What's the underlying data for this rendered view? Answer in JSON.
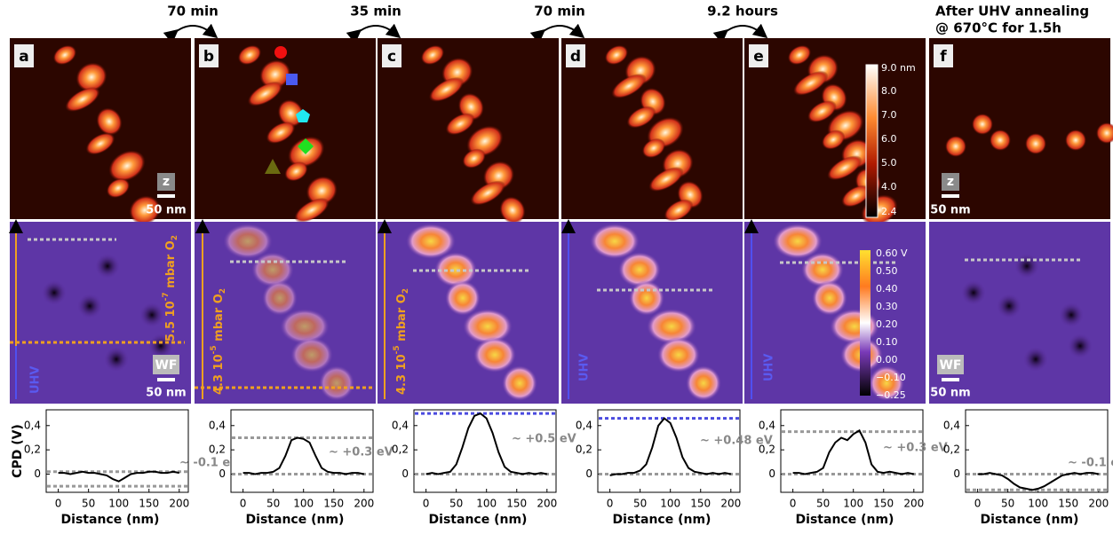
{
  "header": {
    "arrow_labels": [
      "70 min",
      "35 min",
      "70 min",
      "9.2 hours"
    ],
    "annealing": [
      "After UHV annealing",
      "@ 670°C for 1.5h"
    ]
  },
  "panels": {
    "letters": [
      "a",
      "b",
      "c",
      "d",
      "e",
      "f"
    ],
    "z_label": "z",
    "wf_label": "WF",
    "scale_bar": "50 nm"
  },
  "topo_colorbar": [
    "9.0 nm",
    "8.0",
    "7.0",
    "6.0",
    "5.0",
    "4.0",
    "2.4"
  ],
  "wf_colorbar": [
    "0.60 V",
    "0.50",
    "0.40",
    "0.30",
    "0.20",
    "0.10",
    "0.00",
    "−0.10",
    "−0.25"
  ],
  "environment": {
    "uhv": "UHV",
    "low_pressure": {
      "base": "5.5 10",
      "exp": "-7",
      "unit": " mbar O",
      "sub": "2"
    },
    "high_pressure": {
      "base": "4.3 10",
      "exp": "-5",
      "unit": " mbar O",
      "sub": "2"
    }
  },
  "chart_data": [
    {
      "type": "line",
      "xlabel": "Distance (nm)",
      "ylabel": "CPD (V)",
      "annotation": "~ -0.1 eV",
      "x": [
        0,
        10,
        20,
        30,
        40,
        50,
        60,
        70,
        80,
        90,
        100,
        110,
        120,
        130,
        140,
        150,
        160,
        170,
        180,
        190,
        200
      ],
      "series": [
        {
          "color": "#000000",
          "values": [
            0.01,
            0.01,
            0.0,
            0.01,
            0.02,
            0.01,
            0.01,
            0.0,
            -0.01,
            -0.04,
            -0.06,
            -0.03,
            0.0,
            0.01,
            0.01,
            0.02,
            0.02,
            0.01,
            0.01,
            0.02,
            0.01
          ]
        }
      ],
      "reference_lines": [
        {
          "value": 0.02,
          "color": "#999999"
        },
        {
          "value": -0.1,
          "color": "#999999"
        }
      ],
      "xlim": [
        -20,
        215
      ],
      "ylim": [
        -0.15,
        0.53
      ],
      "xticks": [
        0,
        50,
        100,
        150,
        200
      ],
      "yticks": [
        0,
        {
          "value": 0.2,
          "label": "0,2"
        },
        {
          "value": 0.4,
          "label": "0,4"
        }
      ]
    },
    {
      "type": "line",
      "xlabel": "Distance (nm)",
      "annotation": "~ +0.3 eV",
      "x": [
        0,
        10,
        20,
        30,
        40,
        50,
        60,
        70,
        80,
        90,
        100,
        110,
        120,
        130,
        140,
        150,
        160,
        170,
        180,
        190,
        200
      ],
      "series": [
        {
          "color": "#000000",
          "values": [
            0.01,
            0.01,
            0.0,
            0.01,
            0.01,
            0.02,
            0.05,
            0.15,
            0.28,
            0.3,
            0.29,
            0.26,
            0.15,
            0.05,
            0.02,
            0.01,
            0.01,
            0.0,
            0.01,
            0.01,
            0.0
          ]
        }
      ],
      "reference_lines": [
        {
          "value": 0.3,
          "color": "#999999"
        },
        {
          "value": 0,
          "color": "#999999"
        }
      ],
      "xlim": [
        -20,
        215
      ],
      "ylim": [
        -0.15,
        0.53
      ],
      "xticks": [
        0,
        50,
        100,
        150,
        200
      ],
      "yticks": [
        0,
        {
          "value": 0.2,
          "label": "0,2"
        },
        {
          "value": 0.4,
          "label": "0,4"
        }
      ]
    },
    {
      "type": "line",
      "xlabel": "Distance (nm)",
      "annotation": "~ +0.5 eV",
      "x": [
        0,
        10,
        20,
        30,
        40,
        50,
        60,
        70,
        80,
        90,
        100,
        110,
        120,
        130,
        140,
        150,
        160,
        170,
        180,
        190,
        200
      ],
      "series": [
        {
          "color": "#000000",
          "values": [
            0.0,
            0.01,
            0.0,
            0.01,
            0.02,
            0.08,
            0.22,
            0.38,
            0.48,
            0.5,
            0.46,
            0.34,
            0.18,
            0.06,
            0.02,
            0.01,
            0.0,
            0.01,
            0.0,
            0.01,
            0.0
          ]
        }
      ],
      "reference_lines": [
        {
          "value": 0.5,
          "color": "#4a4adf"
        },
        {
          "value": 0,
          "color": "#999999"
        }
      ],
      "xlim": [
        -20,
        215
      ],
      "ylim": [
        -0.15,
        0.53
      ],
      "xticks": [
        0,
        50,
        100,
        150,
        200
      ],
      "yticks": [
        0,
        {
          "value": 0.2,
          "label": "0,2"
        },
        {
          "value": 0.4,
          "label": "0,4"
        }
      ]
    },
    {
      "type": "line",
      "xlabel": "Distance (nm)",
      "annotation": "~ +0.48 eV",
      "x": [
        0,
        10,
        20,
        30,
        40,
        50,
        60,
        70,
        80,
        90,
        100,
        110,
        120,
        130,
        140,
        150,
        160,
        170,
        180,
        190,
        200
      ],
      "series": [
        {
          "color": "#000000",
          "values": [
            -0.01,
            0.0,
            0.0,
            0.01,
            0.01,
            0.03,
            0.08,
            0.22,
            0.4,
            0.46,
            0.42,
            0.3,
            0.14,
            0.05,
            0.02,
            0.01,
            0.0,
            0.01,
            0.0,
            0.01,
            0.0
          ]
        }
      ],
      "reference_lines": [
        {
          "value": 0.46,
          "color": "#4a4adf"
        },
        {
          "value": 0,
          "color": "#999999"
        }
      ],
      "xlim": [
        -20,
        215
      ],
      "ylim": [
        -0.15,
        0.53
      ],
      "xticks": [
        0,
        50,
        100,
        150,
        200
      ],
      "yticks": [
        0,
        {
          "value": 0.2,
          "label": "0,2"
        },
        {
          "value": 0.4,
          "label": "0,4"
        }
      ]
    },
    {
      "type": "line",
      "xlabel": "Distance (nm)",
      "annotation": "~ +0.3 eV",
      "x": [
        0,
        10,
        20,
        30,
        40,
        50,
        60,
        70,
        80,
        90,
        100,
        110,
        120,
        130,
        140,
        150,
        160,
        170,
        180,
        190,
        200
      ],
      "series": [
        {
          "color": "#000000",
          "values": [
            0.01,
            0.01,
            0.0,
            0.01,
            0.02,
            0.05,
            0.18,
            0.26,
            0.3,
            0.28,
            0.33,
            0.36,
            0.26,
            0.08,
            0.02,
            0.01,
            0.02,
            0.01,
            0.0,
            0.01,
            0.0
          ]
        }
      ],
      "reference_lines": [
        {
          "value": 0.35,
          "color": "#999999"
        },
        {
          "value": 0,
          "color": "#999999"
        }
      ],
      "xlim": [
        -20,
        215
      ],
      "ylim": [
        -0.15,
        0.53
      ],
      "xticks": [
        0,
        50,
        100,
        150,
        200
      ],
      "yticks": [
        0,
        {
          "value": 0.2,
          "label": "0,2"
        },
        {
          "value": 0.4,
          "label": "0,4"
        }
      ]
    },
    {
      "type": "line",
      "xlabel": "Distance (nm)",
      "annotation": "~ -0.1 eV",
      "x": [
        0,
        10,
        20,
        30,
        40,
        50,
        60,
        70,
        80,
        90,
        100,
        110,
        120,
        130,
        140,
        150,
        160,
        170,
        180,
        190,
        200
      ],
      "series": [
        {
          "color": "#000000",
          "values": [
            0.0,
            0.0,
            0.01,
            0.0,
            -0.01,
            -0.04,
            -0.08,
            -0.11,
            -0.12,
            -0.13,
            -0.12,
            -0.1,
            -0.07,
            -0.04,
            -0.01,
            0.0,
            0.01,
            0.0,
            0.01,
            0.01,
            0.0
          ]
        }
      ],
      "reference_lines": [
        {
          "value": 0,
          "color": "#999999"
        },
        {
          "value": -0.13,
          "color": "#999999"
        }
      ],
      "xlim": [
        -20,
        215
      ],
      "ylim": [
        -0.15,
        0.53
      ],
      "xticks": [
        0,
        50,
        100,
        150,
        200
      ],
      "yticks": [
        0,
        {
          "value": 0.2,
          "label": "0,2"
        },
        {
          "value": 0.4,
          "label": "0,4"
        }
      ]
    }
  ]
}
